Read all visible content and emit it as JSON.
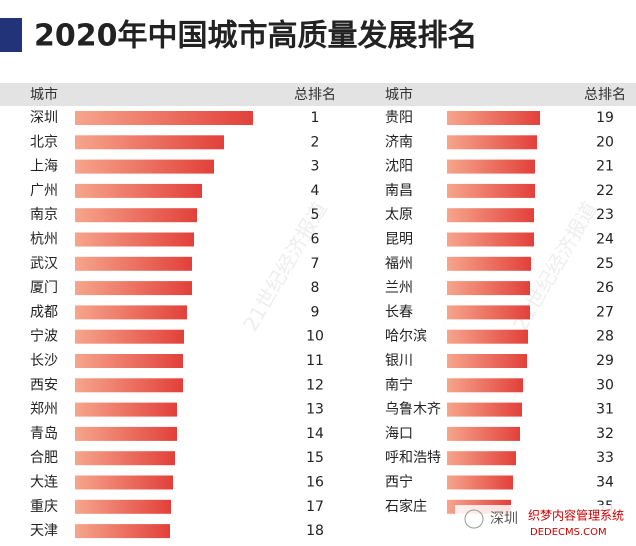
{
  "title": "2020年中国城市高质量发展排名",
  "watermark": {
    "city": "深圳",
    "brand": "织梦内容管理系统",
    "site": "DEDECMS.COM",
    "faint": "21世纪经济报道"
  },
  "chart_data": [
    {
      "type": "bar",
      "category_header": "城市",
      "rank_header": "总排名",
      "colors": [
        "#f6a58c",
        "#e2403a"
      ],
      "xlim": [
        0,
        200
      ],
      "categories": [
        "深圳",
        "北京",
        "上海",
        "广州",
        "南京",
        "杭州",
        "武汉",
        "厦门",
        "成都",
        "宁波",
        "长沙",
        "西安",
        "郑州",
        "青岛",
        "合肥",
        "大连",
        "重庆",
        "天津"
      ],
      "ranks": [
        1,
        2,
        3,
        4,
        5,
        6,
        7,
        8,
        9,
        10,
        11,
        12,
        13,
        14,
        15,
        16,
        17,
        18
      ],
      "values": [
        178,
        149,
        139,
        127,
        122,
        119,
        117,
        117,
        112,
        109,
        108,
        108,
        102,
        102,
        100,
        98,
        96,
        95
      ]
    },
    {
      "type": "bar",
      "category_header": "城市",
      "rank_header": "总排名",
      "colors": [
        "#f6a58c",
        "#e2403a"
      ],
      "xlim": [
        0,
        200
      ],
      "categories": [
        "贵阳",
        "济南",
        "沈阳",
        "南昌",
        "太原",
        "昆明",
        "福州",
        "兰州",
        "长春",
        "哈尔滨",
        "银川",
        "南宁",
        "乌鲁木齐",
        "海口",
        "呼和浩特",
        "西宁",
        "石家庄"
      ],
      "ranks": [
        19,
        20,
        21,
        22,
        23,
        24,
        25,
        26,
        27,
        28,
        29,
        30,
        31,
        32,
        33,
        34,
        35
      ],
      "values": [
        93,
        90,
        88,
        88,
        87,
        87,
        84,
        83,
        83,
        81,
        80,
        76,
        75,
        73,
        69,
        66,
        64
      ]
    }
  ]
}
